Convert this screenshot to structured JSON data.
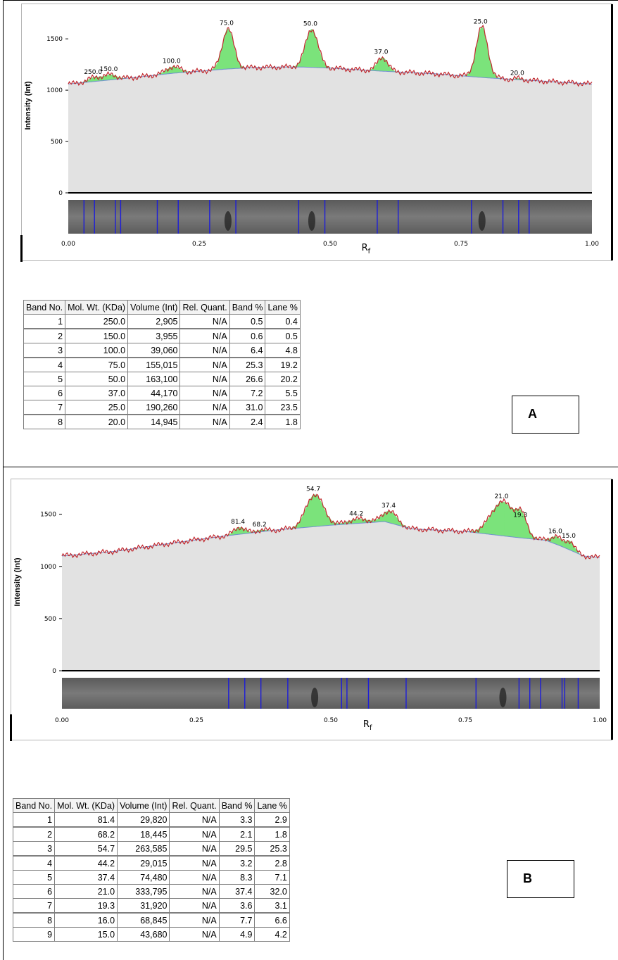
{
  "panels": [
    {
      "label": "A",
      "chart_data": {
        "type": "area",
        "ylabel": "Intensity (Int)",
        "xlabel": "Rf",
        "xlim": [
          0,
          1
        ],
        "ylim": [
          0,
          1700
        ],
        "yticks": [
          0,
          500,
          1000,
          1500
        ],
        "xticks": [
          "0.00",
          "0.25",
          "0.50",
          "0.75",
          "1.00"
        ],
        "baseline": [
          [
            0,
            1060
          ],
          [
            0.1,
            1110
          ],
          [
            0.2,
            1165
          ],
          [
            0.3,
            1205
          ],
          [
            0.35,
            1220
          ],
          [
            0.4,
            1225
          ],
          [
            0.45,
            1225
          ],
          [
            0.5,
            1215
          ],
          [
            0.55,
            1200
          ],
          [
            0.6,
            1185
          ],
          [
            0.7,
            1160
          ],
          [
            0.8,
            1120
          ],
          [
            0.9,
            1090
          ],
          [
            1.0,
            1060
          ]
        ],
        "peaks": [
          {
            "label": "250.0",
            "rf": 0.05,
            "height": 1125,
            "width": 0.012
          },
          {
            "label": "150.0",
            "rf": 0.08,
            "height": 1150,
            "width": 0.012
          },
          {
            "label": "100.0",
            "rf": 0.2,
            "height": 1230,
            "width": 0.013
          },
          {
            "label": "75.0",
            "rf": 0.305,
            "height": 1600,
            "width": 0.011
          },
          {
            "label": "50.0",
            "rf": 0.465,
            "height": 1595,
            "width": 0.012
          },
          {
            "label": "37.0",
            "rf": 0.6,
            "height": 1320,
            "width": 0.01
          },
          {
            "label": "25.0",
            "rf": 0.79,
            "height": 1615,
            "width": 0.011
          },
          {
            "label": "20.0",
            "rf": 0.86,
            "height": 1115,
            "width": 0.008
          }
        ],
        "lane_lines": [
          0.03,
          0.05,
          0.09,
          0.1,
          0.17,
          0.21,
          0.27,
          0.32,
          0.44,
          0.49,
          0.59,
          0.63,
          0.77,
          0.83,
          0.86,
          0.88
        ],
        "lane_bands": [
          0.305,
          0.465,
          0.79
        ]
      },
      "table": {
        "columns": [
          "Band No.",
          "Mol. Wt. (KDa)",
          "Volume (Int)",
          "Rel. Quant.",
          "Band %",
          "Lane %"
        ],
        "rows": [
          [
            "1",
            "250.0",
            "2,905",
            "N/A",
            "0.5",
            "0.4"
          ],
          [
            "2",
            "150.0",
            "3,955",
            "N/A",
            "0.6",
            "0.5"
          ],
          [
            "3",
            "100.0",
            "39,060",
            "N/A",
            "6.4",
            "4.8"
          ],
          [
            "4",
            "75.0",
            "155,015",
            "N/A",
            "25.3",
            "19.2"
          ],
          [
            "5",
            "50.0",
            "163,100",
            "N/A",
            "26.6",
            "20.2"
          ],
          [
            "6",
            "37.0",
            "44,170",
            "N/A",
            "7.2",
            "5.5"
          ],
          [
            "7",
            "25.0",
            "190,260",
            "N/A",
            "31.0",
            "23.5"
          ],
          [
            "8",
            "20.0",
            "14,945",
            "N/A",
            "2.4",
            "1.8"
          ]
        ]
      }
    },
    {
      "label": "B",
      "chart_data": {
        "type": "area",
        "ylabel": "Intensity (Int)",
        "xlabel": "Rf",
        "xlim": [
          0,
          1
        ],
        "ylim": [
          0,
          1700
        ],
        "yticks": [
          0,
          500,
          1000,
          1500
        ],
        "xticks": [
          "0.00",
          "0.25",
          "0.50",
          "0.75",
          "1.00"
        ],
        "baseline": [
          [
            0,
            1100
          ],
          [
            0.1,
            1145
          ],
          [
            0.2,
            1220
          ],
          [
            0.3,
            1290
          ],
          [
            0.4,
            1350
          ],
          [
            0.5,
            1395
          ],
          [
            0.6,
            1430
          ],
          [
            0.65,
            1360
          ],
          [
            0.75,
            1335
          ],
          [
            0.85,
            1275
          ],
          [
            0.9,
            1250
          ],
          [
            0.93,
            1190
          ],
          [
            0.97,
            1100
          ],
          [
            1.0,
            1085
          ]
        ],
        "peaks": [
          {
            "label": "81.4",
            "rf": 0.33,
            "height": 1375,
            "width": 0.01
          },
          {
            "label": "68.2",
            "rf": 0.37,
            "height": 1350,
            "width": 0.01
          },
          {
            "label": "54.7",
            "rf": 0.47,
            "height": 1690,
            "width": 0.016
          },
          {
            "label": "44.2",
            "rf": 0.55,
            "height": 1455,
            "width": 0.018
          },
          {
            "label": "37.4",
            "rf": 0.61,
            "height": 1530,
            "width": 0.013
          },
          {
            "label": "21.0",
            "rf": 0.82,
            "height": 1620,
            "width": 0.022
          },
          {
            "label": "19.3",
            "rf": 0.855,
            "height": 1440,
            "width": 0.01
          },
          {
            "label": "16.0",
            "rf": 0.92,
            "height": 1285,
            "width": 0.01
          },
          {
            "label": "15.0",
            "rf": 0.945,
            "height": 1240,
            "width": 0.008
          }
        ],
        "lane_lines": [
          0.31,
          0.34,
          0.37,
          0.42,
          0.52,
          0.53,
          0.57,
          0.64,
          0.77,
          0.85,
          0.87,
          0.89,
          0.93,
          0.935,
          0.96
        ],
        "lane_bands": [
          0.47,
          0.82
        ]
      },
      "table": {
        "columns": [
          "Band No.",
          "Mol. Wt. (KDa)",
          "Volume (Int)",
          "Rel. Quant.",
          "Band %",
          "Lane %"
        ],
        "rows": [
          [
            "1",
            "81.4",
            "29,820",
            "N/A",
            "3.3",
            "2.9"
          ],
          [
            "2",
            "68.2",
            "18,445",
            "N/A",
            "2.1",
            "1.8"
          ],
          [
            "3",
            "54.7",
            "263,585",
            "N/A",
            "29.5",
            "25.3"
          ],
          [
            "4",
            "44.2",
            "29,015",
            "N/A",
            "3.2",
            "2.8"
          ],
          [
            "5",
            "37.4",
            "74,480",
            "N/A",
            "8.3",
            "7.1"
          ],
          [
            "6",
            "21.0",
            "333,795",
            "N/A",
            "37.4",
            "32.0"
          ],
          [
            "7",
            "19.3",
            "31,920",
            "N/A",
            "3.6",
            "3.1"
          ],
          [
            "8",
            "16.0",
            "68,845",
            "N/A",
            "7.7",
            "6.6"
          ],
          [
            "9",
            "15.0",
            "43,680",
            "N/A",
            "4.9",
            "4.2"
          ]
        ]
      }
    }
  ],
  "colors": {
    "fill_gray": "#e2e2e2",
    "peak_green": "#7be37b",
    "profile_red": "#c0282e",
    "baseline_blue": "#6f8fd0",
    "lane_line_blue": "#1d1dd8",
    "lane_gray": "#6e6e6e"
  }
}
